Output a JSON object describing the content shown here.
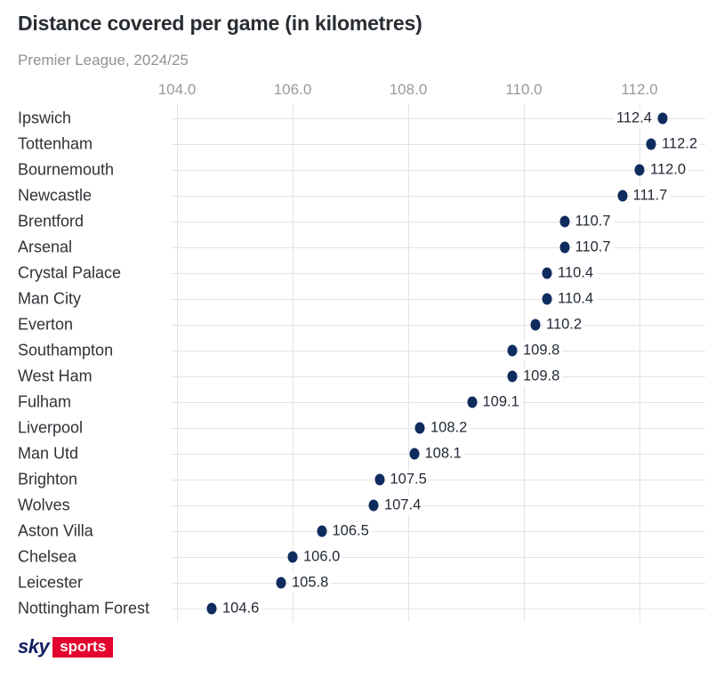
{
  "header": {
    "title": "Distance covered per game (in kilometres)",
    "subtitle": "Premier League, 2024/25"
  },
  "axis": {
    "ticks": [
      "104.0",
      "106.0",
      "108.0",
      "110.0",
      "112.0"
    ]
  },
  "chart_data": {
    "type": "scatter",
    "orientation": "horizontal",
    "title": "Distance covered per game (in kilometres)",
    "subtitle": "Premier League, 2024/25",
    "categories": [
      "Ipswich",
      "Tottenham",
      "Bournemouth",
      "Newcastle",
      "Brentford",
      "Arsenal",
      "Crystal Palace",
      "Man City",
      "Everton",
      "Southampton",
      "West Ham",
      "Fulham",
      "Liverpool",
      "Man Utd",
      "Brighton",
      "Wolves",
      "Aston Villa",
      "Chelsea",
      "Leicester",
      "Nottingham Forest"
    ],
    "values": [
      112.4,
      112.2,
      112.0,
      111.7,
      110.7,
      110.7,
      110.4,
      110.4,
      110.2,
      109.8,
      109.8,
      109.1,
      108.2,
      108.1,
      107.5,
      107.4,
      106.5,
      106.0,
      105.8,
      104.6
    ],
    "value_labels": [
      "112.4",
      "112.2",
      "112.0",
      "111.7",
      "110.7",
      "110.7",
      "110.4",
      "110.4",
      "110.2",
      "109.8",
      "109.8",
      "109.1",
      "108.2",
      "108.1",
      "107.5",
      "107.4",
      "106.5",
      "106.0",
      "105.8",
      "104.6"
    ],
    "xticks": [
      104.0,
      106.0,
      108.0,
      110.0,
      112.0
    ],
    "xlim": [
      103.9,
      113.1
    ],
    "grid": "both",
    "legend": "none",
    "xlabel": "",
    "ylabel": ""
  },
  "colors": {
    "dot": "#0f2c5f",
    "grid": "#e2e3e4",
    "sky_navy": "#101f61",
    "sports_red": "#e4032e"
  },
  "footer": {
    "logo": {
      "sky": "sky",
      "sports": "sports"
    }
  }
}
